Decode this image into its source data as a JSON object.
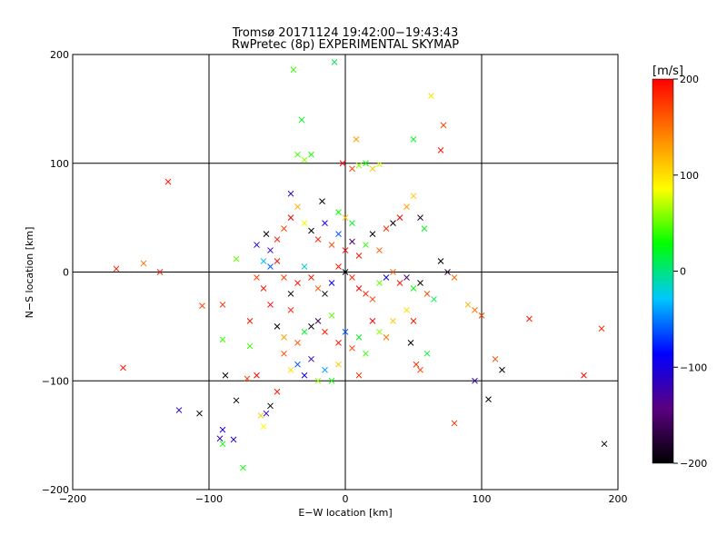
{
  "title_line1": "Tromsø 20171124 19:42:00−19:43:43",
  "title_line2": "RwPretec (8p) EXPERIMENTAL SKYMAP",
  "chart_data": {
    "type": "scatter",
    "title": "Tromsø 20171124 19:42:00−19:43:43",
    "subtitle": "RwPretec (8p) EXPERIMENTAL SKYMAP",
    "xlabel": "E−W location [km]",
    "ylabel": "N−S location [km]",
    "xlim": [
      -200,
      200
    ],
    "ylim": [
      -200,
      200
    ],
    "xticks": [
      -200,
      -100,
      0,
      100,
      200
    ],
    "yticks": [
      -200,
      -100,
      0,
      100,
      200
    ],
    "xtick_labels": [
      "−200",
      "−100",
      "0",
      "100",
      "200"
    ],
    "ytick_labels": [
      "−200",
      "−100",
      "0",
      "100",
      "200"
    ],
    "grid": true,
    "colorbar": {
      "label": "[m/s]",
      "range": [
        -200,
        200
      ],
      "ticks": [
        -200,
        -100,
        0,
        100,
        200
      ],
      "tick_labels": [
        "−200",
        "−100",
        "0",
        "100",
        "200"
      ],
      "colors": [
        "#000000",
        "#5a0080",
        "#0000ff",
        "#00c8ff",
        "#00ff00",
        "#ffff00",
        "#ff8000",
        "#ff0000"
      ]
    },
    "points": [
      {
        "x": -168,
        "y": 3,
        "v": 180
      },
      {
        "x": -130,
        "y": 83,
        "v": 190
      },
      {
        "x": -122,
        "y": -127,
        "v": -110
      },
      {
        "x": -107,
        "y": -130,
        "v": -200
      },
      {
        "x": -105,
        "y": -31,
        "v": 170
      },
      {
        "x": -90,
        "y": -62,
        "v": 40
      },
      {
        "x": -90,
        "y": -145,
        "v": -100
      },
      {
        "x": -90,
        "y": -158,
        "v": 30
      },
      {
        "x": -92,
        "y": -153,
        "v": -120
      },
      {
        "x": -88,
        "y": -95,
        "v": -200
      },
      {
        "x": -80,
        "y": -118,
        "v": -200
      },
      {
        "x": -82,
        "y": -154,
        "v": -110
      },
      {
        "x": -75,
        "y": -180,
        "v": 30
      },
      {
        "x": -72,
        "y": -98,
        "v": 170
      },
      {
        "x": -70,
        "y": -68,
        "v": 40
      },
      {
        "x": -65,
        "y": -95,
        "v": 200
      },
      {
        "x": -62,
        "y": -132,
        "v": 110
      },
      {
        "x": -60,
        "y": -142,
        "v": 90
      },
      {
        "x": -58,
        "y": -130,
        "v": -110
      },
      {
        "x": -55,
        "y": -123,
        "v": -200
      },
      {
        "x": -50,
        "y": -110,
        "v": 190
      },
      {
        "x": -45,
        "y": -75,
        "v": 170
      },
      {
        "x": -40,
        "y": -90,
        "v": 100
      },
      {
        "x": -35,
        "y": -85,
        "v": -60
      },
      {
        "x": -30,
        "y": -95,
        "v": -90
      },
      {
        "x": -25,
        "y": -80,
        "v": -120
      },
      {
        "x": -20,
        "y": -100,
        "v": 60
      },
      {
        "x": -15,
        "y": -90,
        "v": -40
      },
      {
        "x": -10,
        "y": -100,
        "v": 30
      },
      {
        "x": -5,
        "y": -85,
        "v": 110
      },
      {
        "x": 10,
        "y": -95,
        "v": 180
      },
      {
        "x": -30,
        "y": -55,
        "v": 20
      },
      {
        "x": -25,
        "y": -50,
        "v": -200
      },
      {
        "x": -20,
        "y": -45,
        "v": -160
      },
      {
        "x": -15,
        "y": -55,
        "v": 190
      },
      {
        "x": -10,
        "y": -40,
        "v": 50
      },
      {
        "x": -40,
        "y": -35,
        "v": 180
      },
      {
        "x": -45,
        "y": -60,
        "v": 130
      },
      {
        "x": -50,
        "y": -50,
        "v": -200
      },
      {
        "x": -35,
        "y": -65,
        "v": 160
      },
      {
        "x": -55,
        "y": -30,
        "v": 200
      },
      {
        "x": -60,
        "y": -15,
        "v": 190
      },
      {
        "x": -65,
        "y": -5,
        "v": 170
      },
      {
        "x": -60,
        "y": 10,
        "v": -30
      },
      {
        "x": -55,
        "y": 20,
        "v": -120
      },
      {
        "x": -58,
        "y": 35,
        "v": -200
      },
      {
        "x": -50,
        "y": 30,
        "v": 190
      },
      {
        "x": -45,
        "y": 40,
        "v": 170
      },
      {
        "x": -40,
        "y": 50,
        "v": 200
      },
      {
        "x": -35,
        "y": 60,
        "v": 120
      },
      {
        "x": -40,
        "y": 72,
        "v": -120
      },
      {
        "x": -30,
        "y": 45,
        "v": 80
      },
      {
        "x": -25,
        "y": 38,
        "v": -200
      },
      {
        "x": -20,
        "y": 30,
        "v": 190
      },
      {
        "x": -15,
        "y": 45,
        "v": -110
      },
      {
        "x": -10,
        "y": 25,
        "v": 170
      },
      {
        "x": -5,
        "y": 35,
        "v": -60
      },
      {
        "x": 0,
        "y": 20,
        "v": 200
      },
      {
        "x": 5,
        "y": 28,
        "v": -150
      },
      {
        "x": 10,
        "y": 15,
        "v": 190
      },
      {
        "x": 15,
        "y": 25,
        "v": 40
      },
      {
        "x": 20,
        "y": 35,
        "v": -200
      },
      {
        "x": 25,
        "y": 20,
        "v": 160
      },
      {
        "x": 30,
        "y": 40,
        "v": 180
      },
      {
        "x": 35,
        "y": 45,
        "v": -200
      },
      {
        "x": 40,
        "y": 50,
        "v": 200
      },
      {
        "x": 45,
        "y": 60,
        "v": 130
      },
      {
        "x": 50,
        "y": 70,
        "v": 110
      },
      {
        "x": 55,
        "y": 50,
        "v": -180
      },
      {
        "x": 58,
        "y": 40,
        "v": 20
      },
      {
        "x": -5,
        "y": 5,
        "v": 190
      },
      {
        "x": 0,
        "y": 0,
        "v": -200
      },
      {
        "x": 5,
        "y": -5,
        "v": 180
      },
      {
        "x": 10,
        "y": -15,
        "v": 200
      },
      {
        "x": 15,
        "y": -20,
        "v": 190
      },
      {
        "x": 20,
        "y": -25,
        "v": 170
      },
      {
        "x": -10,
        "y": -10,
        "v": -90
      },
      {
        "x": -15,
        "y": -20,
        "v": -200
      },
      {
        "x": -20,
        "y": -15,
        "v": 160
      },
      {
        "x": -25,
        "y": -5,
        "v": 190
      },
      {
        "x": -30,
        "y": 5,
        "v": -20
      },
      {
        "x": -35,
        "y": -10,
        "v": 190
      },
      {
        "x": -40,
        "y": -20,
        "v": -200
      },
      {
        "x": -45,
        "y": -5,
        "v": 170
      },
      {
        "x": 25,
        "y": -10,
        "v": 50
      },
      {
        "x": 30,
        "y": -5,
        "v": -100
      },
      {
        "x": 35,
        "y": 0,
        "v": 160
      },
      {
        "x": 40,
        "y": -10,
        "v": 190
      },
      {
        "x": 45,
        "y": -5,
        "v": -150
      },
      {
        "x": 50,
        "y": -15,
        "v": 30
      },
      {
        "x": 55,
        "y": -10,
        "v": -200
      },
      {
        "x": 60,
        "y": -20,
        "v": 170
      },
      {
        "x": 65,
        "y": -25,
        "v": 10
      },
      {
        "x": 45,
        "y": -35,
        "v": 100
      },
      {
        "x": 50,
        "y": -45,
        "v": 190
      },
      {
        "x": 48,
        "y": -65,
        "v": -200
      },
      {
        "x": 52,
        "y": -85,
        "v": 180
      },
      {
        "x": 55,
        "y": -90,
        "v": 170
      },
      {
        "x": 60,
        "y": -75,
        "v": 20
      },
      {
        "x": 70,
        "y": 10,
        "v": -200
      },
      {
        "x": 75,
        "y": 0,
        "v": -180
      },
      {
        "x": 80,
        "y": -5,
        "v": 150
      },
      {
        "x": 90,
        "y": -30,
        "v": 120
      },
      {
        "x": 95,
        "y": -35,
        "v": 150
      },
      {
        "x": 100,
        "y": -40,
        "v": 170
      },
      {
        "x": 135,
        "y": -43,
        "v": 190
      },
      {
        "x": 115,
        "y": -90,
        "v": -200
      },
      {
        "x": 105,
        "y": -117,
        "v": -200
      },
      {
        "x": 80,
        "y": -139,
        "v": 180
      },
      {
        "x": 95,
        "y": -100,
        "v": -120
      },
      {
        "x": 110,
        "y": -80,
        "v": 170
      },
      {
        "x": 50,
        "y": 122,
        "v": 20
      },
      {
        "x": 63,
        "y": 162,
        "v": 100
      },
      {
        "x": 72,
        "y": 135,
        "v": 170
      },
      {
        "x": 70,
        "y": 112,
        "v": 190
      },
      {
        "x": 8,
        "y": 122,
        "v": 130
      },
      {
        "x": -32,
        "y": 140,
        "v": 20
      },
      {
        "x": -35,
        "y": 108,
        "v": 40
      },
      {
        "x": -30,
        "y": 103,
        "v": 60
      },
      {
        "x": -25,
        "y": 108,
        "v": 30
      },
      {
        "x": -2,
        "y": 100,
        "v": 200
      },
      {
        "x": 5,
        "y": 95,
        "v": 170
      },
      {
        "x": 10,
        "y": 98,
        "v": 60
      },
      {
        "x": 15,
        "y": 100,
        "v": 30
      },
      {
        "x": 20,
        "y": 95,
        "v": 110
      },
      {
        "x": 25,
        "y": 99,
        "v": 80
      },
      {
        "x": -38,
        "y": 186,
        "v": 40
      },
      {
        "x": -8,
        "y": 193,
        "v": 10
      },
      {
        "x": -17,
        "y": 65,
        "v": -200
      },
      {
        "x": -5,
        "y": 55,
        "v": 30
      },
      {
        "x": 0,
        "y": 50,
        "v": 110
      },
      {
        "x": 5,
        "y": 45,
        "v": 20
      },
      {
        "x": -50,
        "y": 10,
        "v": 190
      },
      {
        "x": -55,
        "y": 5,
        "v": -60
      },
      {
        "x": -65,
        "y": 25,
        "v": -110
      },
      {
        "x": -80,
        "y": 12,
        "v": 50
      },
      {
        "x": -90,
        "y": -30,
        "v": 180
      },
      {
        "x": -70,
        "y": -45,
        "v": 190
      },
      {
        "x": 20,
        "y": -45,
        "v": 200
      },
      {
        "x": 25,
        "y": -55,
        "v": 60
      },
      {
        "x": 30,
        "y": -60,
        "v": 150
      },
      {
        "x": 35,
        "y": -45,
        "v": 110
      },
      {
        "x": 10,
        "y": -60,
        "v": 20
      },
      {
        "x": 5,
        "y": -70,
        "v": 170
      },
      {
        "x": -5,
        "y": -65,
        "v": 190
      },
      {
        "x": 0,
        "y": -55,
        "v": -60
      },
      {
        "x": 15,
        "y": -75,
        "v": 40
      },
      {
        "x": 190,
        "y": -158,
        "v": -200
      },
      {
        "x": 175,
        "y": -95,
        "v": 200
      },
      {
        "x": 188,
        "y": -52,
        "v": 180
      },
      {
        "x": -148,
        "y": 8,
        "v": 150
      },
      {
        "x": -136,
        "y": 0,
        "v": 190
      },
      {
        "x": -163,
        "y": -88,
        "v": 190
      }
    ]
  }
}
